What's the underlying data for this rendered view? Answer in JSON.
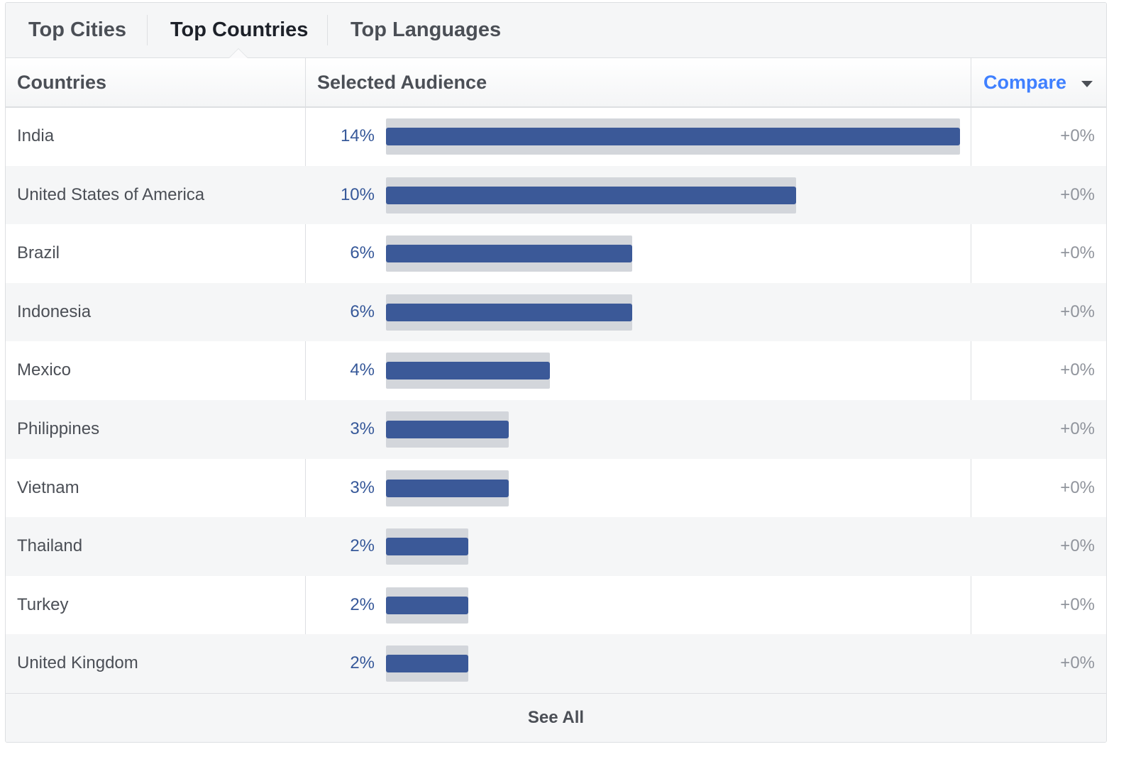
{
  "tabs": [
    {
      "label": "Top Cities",
      "active": false
    },
    {
      "label": "Top Countries",
      "active": true
    },
    {
      "label": "Top Languages",
      "active": false
    }
  ],
  "table": {
    "headers": {
      "countries": "Countries",
      "selected_audience": "Selected Audience",
      "compare": "Compare"
    },
    "max_percent": 14,
    "rows": [
      {
        "country": "India",
        "percent_label": "14%",
        "percent": 14,
        "delta": "+0%"
      },
      {
        "country": "United States of America",
        "percent_label": "10%",
        "percent": 10,
        "delta": "+0%"
      },
      {
        "country": "Brazil",
        "percent_label": "6%",
        "percent": 6,
        "delta": "+0%"
      },
      {
        "country": "Indonesia",
        "percent_label": "6%",
        "percent": 6,
        "delta": "+0%"
      },
      {
        "country": "Mexico",
        "percent_label": "4%",
        "percent": 4,
        "delta": "+0%"
      },
      {
        "country": "Philippines",
        "percent_label": "3%",
        "percent": 3,
        "delta": "+0%"
      },
      {
        "country": "Vietnam",
        "percent_label": "3%",
        "percent": 3,
        "delta": "+0%"
      },
      {
        "country": "Thailand",
        "percent_label": "2%",
        "percent": 2,
        "delta": "+0%"
      },
      {
        "country": "Turkey",
        "percent_label": "2%",
        "percent": 2,
        "delta": "+0%"
      },
      {
        "country": "United Kingdom",
        "percent_label": "2%",
        "percent": 2,
        "delta": "+0%"
      }
    ]
  },
  "footer": {
    "see_all": "See All"
  },
  "colors": {
    "bar_fill": "#3b5998",
    "bar_track": "#d3d6db",
    "percent_text": "#365899",
    "compare_link": "#4080ff",
    "row_alt": "#f5f6f7"
  },
  "icons": {
    "compare_dropdown": "chevron-down-icon"
  }
}
